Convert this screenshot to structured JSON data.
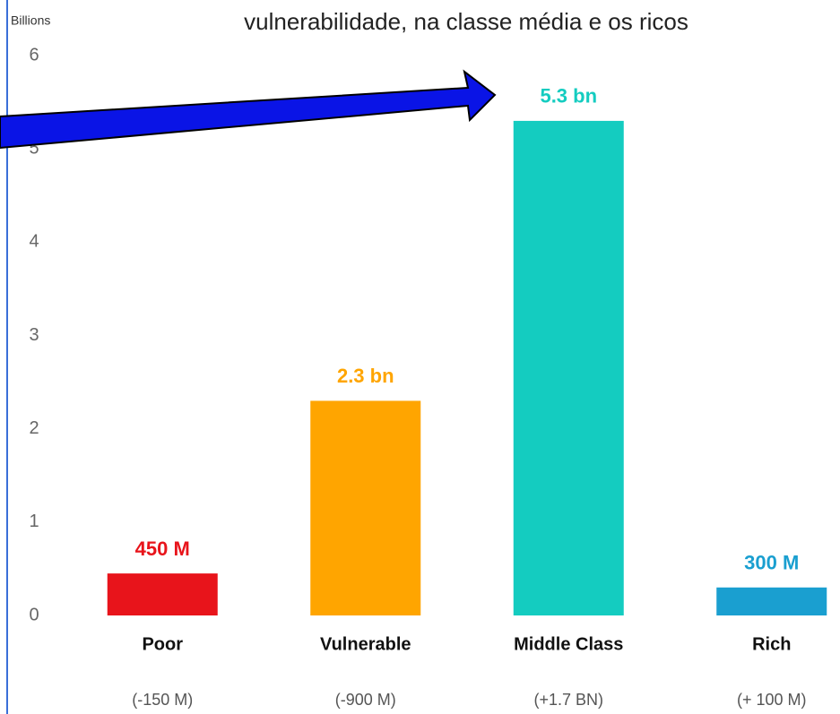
{
  "chart_data": {
    "type": "bar",
    "title": "vulnerabilidade, na classe média e os ricos",
    "y_label": "Billions",
    "categories": [
      "Poor",
      "Vulnerable",
      "Middle Class",
      "Rich"
    ],
    "changes": [
      "(-150 M)",
      "(-900 M)",
      "(+1.7 BN)",
      "(+ 100 M)"
    ],
    "values": [
      0.45,
      2.3,
      5.3,
      0.3
    ],
    "value_labels": [
      "450 M",
      "2.3 bn",
      "5.3 bn",
      "300 M"
    ],
    "colors": [
      "#e8141b",
      "#ffa500",
      "#14ccc0",
      "#1a9fd0"
    ],
    "ylim": [
      0,
      6
    ],
    "yticks": [
      0,
      1,
      2,
      3,
      4,
      5,
      6
    ],
    "grid": false
  }
}
